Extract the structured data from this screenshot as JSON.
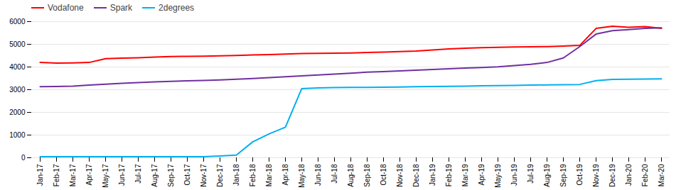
{
  "chart_data": {
    "type": "line",
    "categories": [
      "Jan-17",
      "Feb-17",
      "Mar-17",
      "Apr-17",
      "May-17",
      "Jun-17",
      "Jul-17",
      "Aug-17",
      "Sep-17",
      "Oct-17",
      "Nov-17",
      "Dec-17",
      "Jan-18",
      "Feb-18",
      "Mar-18",
      "Apr-18",
      "May-18",
      "Jun-18",
      "Jul-18",
      "Aug-18",
      "Sep-18",
      "Oct-18",
      "Nov-18",
      "Dec-18",
      "Jan-19",
      "Feb-19",
      "Mar-19",
      "Apr-19",
      "May-19",
      "Jun-19",
      "Jul-19",
      "Aug-19",
      "Sep-19",
      "Oct-19",
      "Nov-19",
      "Dec-19",
      "Jan-20",
      "Feb-20",
      "Mar-20"
    ],
    "series": [
      {
        "name": "Vodafone",
        "color": "#FF0000",
        "values": [
          4200,
          4170,
          4180,
          4200,
          4370,
          4390,
          4410,
          4440,
          4460,
          4470,
          4480,
          4490,
          4510,
          4530,
          4550,
          4570,
          4590,
          4600,
          4610,
          4620,
          4640,
          4660,
          4680,
          4700,
          4750,
          4800,
          4830,
          4850,
          4870,
          4880,
          4890,
          4900,
          4920,
          4950,
          5700,
          5800,
          5750,
          5780,
          5700
        ]
      },
      {
        "name": "Spark",
        "color": "#7030A0",
        "values": [
          3130,
          3140,
          3160,
          3200,
          3240,
          3280,
          3310,
          3340,
          3370,
          3390,
          3410,
          3430,
          3460,
          3490,
          3530,
          3570,
          3610,
          3650,
          3690,
          3730,
          3770,
          3800,
          3830,
          3860,
          3890,
          3920,
          3950,
          3980,
          4010,
          4060,
          4120,
          4200,
          4400,
          4900,
          5450,
          5600,
          5650,
          5700,
          5730
        ]
      },
      {
        "name": "2degrees",
        "color": "#00B0F0",
        "values": [
          50,
          50,
          50,
          50,
          50,
          50,
          50,
          50,
          50,
          50,
          50,
          80,
          120,
          700,
          1050,
          1350,
          3050,
          3080,
          3090,
          3100,
          3100,
          3110,
          3120,
          3130,
          3140,
          3150,
          3160,
          3170,
          3180,
          3190,
          3200,
          3210,
          3220,
          3230,
          3400,
          3450,
          3460,
          3470,
          3480
        ]
      }
    ],
    "ylim": [
      0,
      6000
    ],
    "yticks": [
      0,
      1000,
      2000,
      3000,
      4000,
      5000,
      6000
    ],
    "grid": true,
    "legend": "upper left"
  }
}
